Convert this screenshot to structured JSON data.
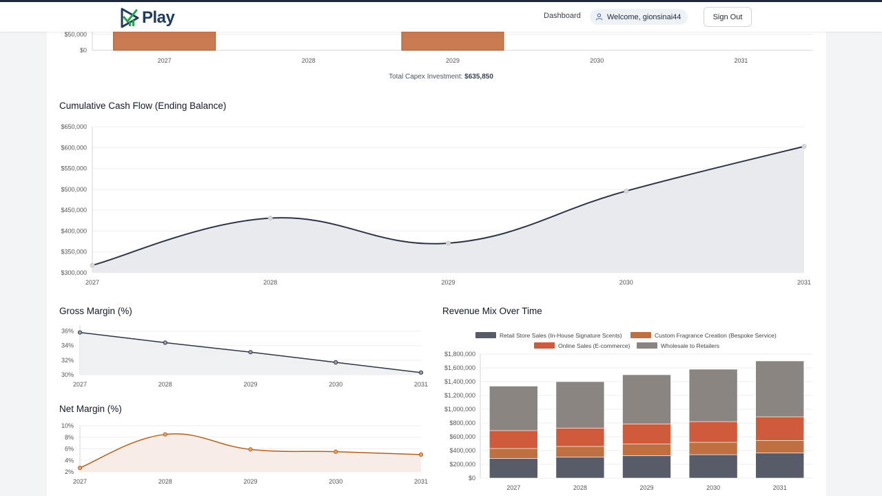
{
  "header": {
    "logo_text": "Play",
    "nav_dashboard": "Dashboard",
    "welcome": "Welcome, gionsinai44",
    "sign_out": "Sign Out"
  },
  "capex": {
    "total_label": "Total Capex Investment:",
    "total_value": "$635,850"
  },
  "colors": {
    "capex_bar": "#c97a50",
    "dark_line": "#2d3446",
    "net_line": "#b45f1c",
    "retail": "#575c68",
    "custom": "#c07040",
    "online": "#cf5a3c",
    "wholesale": "#8a8580"
  },
  "chart_data": [
    {
      "id": "capex",
      "type": "bar",
      "title": "",
      "categories": [
        "2027",
        "2028",
        "2029",
        "2030",
        "2031"
      ],
      "y_ticks": [
        "$50,000",
        "$0"
      ],
      "values": [
        null,
        null,
        null,
        null,
        null
      ],
      "note": ""
    },
    {
      "id": "cumulative",
      "type": "area",
      "title": "Cumulative Cash Flow (Ending Balance)",
      "categories": [
        "2027",
        "2028",
        "2029",
        "2030",
        "2031"
      ],
      "values": [
        318000,
        431000,
        371000,
        496000,
        603000
      ],
      "ylim": [
        300000,
        650000
      ],
      "y_ticks": [
        "$650,000",
        "$600,000",
        "$550,000",
        "$500,000",
        "$450,000",
        "$400,000",
        "$350,000",
        "$300,000"
      ]
    },
    {
      "id": "gross",
      "type": "line",
      "title": "Gross Margin (%)",
      "categories": [
        "2027",
        "2028",
        "2029",
        "2030",
        "2031"
      ],
      "values": [
        35.8,
        34.4,
        33.1,
        31.7,
        30.3
      ],
      "ylim": [
        30,
        36.8
      ],
      "y_ticks": [
        "36%",
        "34%",
        "32%",
        "30%"
      ]
    },
    {
      "id": "net",
      "type": "area",
      "title": "Net Margin (%)",
      "categories": [
        "2027",
        "2028",
        "2029",
        "2030",
        "2031"
      ],
      "values": [
        2.7,
        8.5,
        5.9,
        5.5,
        5.0
      ],
      "ylim": [
        2,
        10
      ],
      "y_ticks": [
        "10%",
        "8%",
        "6%",
        "4%",
        "2%"
      ]
    },
    {
      "id": "mix",
      "type": "bar",
      "stacked": true,
      "title": "Revenue Mix Over Time",
      "categories": [
        "2027",
        "2028",
        "2029",
        "2030",
        "2031"
      ],
      "ylim": [
        0,
        1800000
      ],
      "y_ticks": [
        "$1,800,000",
        "$1,600,000",
        "$1,400,000",
        "$1,200,000",
        "$1,000,000",
        "$800,000",
        "$600,000",
        "$400,000",
        "$200,000",
        "$0"
      ],
      "legend_position": "top",
      "series": [
        {
          "name": "Retail Store Sales (In-House Signature Scents)",
          "values": [
            285000,
            305000,
            325000,
            340000,
            365000
          ]
        },
        {
          "name": "Custom Fragrance Creation (Bespoke Service)",
          "values": [
            145000,
            155000,
            170000,
            180000,
            180000
          ]
        },
        {
          "name": "Online Sales (E-commerce)",
          "values": [
            260000,
            265000,
            290000,
            300000,
            345000
          ]
        },
        {
          "name": "Wholesale to Retailers",
          "values": [
            645000,
            675000,
            715000,
            760000,
            810000
          ]
        }
      ]
    }
  ]
}
